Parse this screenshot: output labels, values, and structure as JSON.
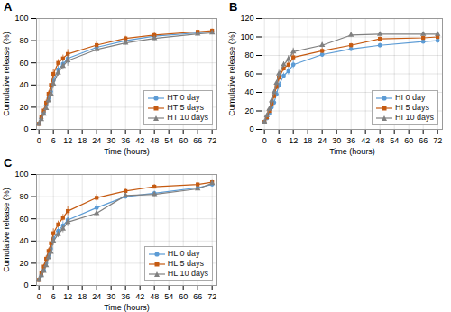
{
  "chart_data": [
    {
      "type": "line",
      "title": "A",
      "xlabel": "Time (hours)",
      "ylabel": "Cumulative release (%)",
      "x": [
        0,
        1,
        2,
        3,
        4,
        5,
        6,
        8,
        10,
        12,
        24,
        36,
        48,
        66,
        72
      ],
      "series": [
        {
          "name": "HT 0 day",
          "color": "#5b9bd5",
          "marker": "circle",
          "values": [
            5,
            10,
            15,
            22,
            28,
            34,
            44,
            54,
            59,
            64,
            74,
            80,
            84,
            87,
            88
          ],
          "errors": [
            0.5,
            1.5,
            2,
            2,
            2.5,
            3,
            4,
            3,
            3.5,
            5,
            3,
            2,
            2,
            1.5,
            1.5
          ]
        },
        {
          "name": "HT 5 days",
          "color": "#c55a11",
          "marker": "square",
          "values": [
            5,
            11,
            17,
            24,
            32,
            40,
            50,
            60,
            64,
            68,
            76,
            82,
            85,
            88,
            89
          ],
          "errors": [
            0.5,
            1.5,
            2,
            2.5,
            2.5,
            3,
            4,
            3,
            3,
            4,
            3,
            2,
            2,
            1.5,
            1.5
          ]
        },
        {
          "name": "HT 10 days",
          "color": "#808080",
          "marker": "triangle",
          "values": [
            5,
            9,
            14,
            19,
            26,
            32,
            41,
            51,
            57,
            62,
            72,
            78,
            82,
            86,
            87
          ],
          "errors": [
            0.5,
            1.5,
            2,
            2,
            2.5,
            3,
            4,
            3,
            3.5,
            5,
            3,
            2,
            2,
            1.5,
            1.5
          ]
        }
      ],
      "xlim": [
        -1,
        74
      ],
      "xticks": [
        0,
        6,
        12,
        18,
        24,
        30,
        36,
        42,
        48,
        54,
        60,
        66,
        72
      ],
      "ylim": [
        0,
        100
      ],
      "yticks": [
        0,
        20,
        40,
        60,
        80,
        100
      ],
      "grid": true,
      "legend": "lower right"
    },
    {
      "type": "line",
      "title": "B",
      "xlabel": "Time (hours)",
      "ylabel": "Cumulative release (%)",
      "x": [
        0,
        1,
        2,
        3,
        4,
        5,
        6,
        8,
        10,
        12,
        24,
        36,
        48,
        66,
        72
      ],
      "series": [
        {
          "name": "HI 0 day",
          "color": "#5b9bd5",
          "marker": "circle",
          "values": [
            8,
            12,
            17,
            24,
            29,
            38,
            48,
            58,
            63,
            70,
            81,
            87,
            91,
            95,
            96
          ],
          "errors": [
            1,
            2,
            2,
            3,
            3,
            3,
            4,
            3,
            4,
            4,
            3,
            2,
            2,
            2,
            2
          ]
        },
        {
          "name": "HI 5 days",
          "color": "#c55a11",
          "marker": "square",
          "values": [
            8,
            13,
            20,
            28,
            36,
            46,
            56,
            66,
            70,
            78,
            85,
            91,
            98,
            99,
            100
          ],
          "errors": [
            1,
            2,
            2,
            3,
            3,
            3,
            4,
            3,
            3,
            4,
            3,
            2,
            2,
            2,
            2
          ]
        },
        {
          "name": "HI 10 days",
          "color": "#808080",
          "marker": "triangle",
          "values": [
            8,
            15,
            22,
            31,
            40,
            50,
            60,
            70,
            76,
            84,
            91,
            102,
            103,
            103,
            103
          ],
          "errors": [
            1,
            2,
            2,
            3,
            3,
            3,
            4,
            3,
            4,
            4,
            3,
            2,
            2,
            2,
            2
          ]
        }
      ],
      "xlim": [
        -1,
        74
      ],
      "xticks": [
        0,
        6,
        12,
        18,
        24,
        30,
        36,
        42,
        48,
        54,
        60,
        66,
        72
      ],
      "ylim": [
        0,
        120
      ],
      "yticks": [
        0,
        20,
        40,
        60,
        80,
        100,
        120
      ],
      "grid": true,
      "legend": "lower right"
    },
    {
      "type": "line",
      "title": "C",
      "xlabel": "Time (hours)",
      "ylabel": "Cumulative release (%)",
      "x": [
        0,
        1,
        2,
        3,
        4,
        5,
        6,
        8,
        10,
        12,
        24,
        36,
        48,
        66,
        72
      ],
      "series": [
        {
          "name": "HL 0 day",
          "color": "#5b9bd5",
          "marker": "circle",
          "values": [
            5,
            9,
            14,
            20,
            27,
            33,
            42,
            49,
            54,
            59,
            70,
            80,
            83,
            88,
            91
          ],
          "errors": [
            0.5,
            1.5,
            2,
            2,
            2.5,
            3,
            4,
            3,
            3.5,
            4,
            3,
            2,
            2,
            1.5,
            1.5
          ]
        },
        {
          "name": "HL 5 days",
          "color": "#c55a11",
          "marker": "square",
          "values": [
            5,
            11,
            17,
            24,
            31,
            38,
            47,
            55,
            61,
            67,
            79,
            85,
            89,
            91,
            93
          ],
          "errors": [
            0.5,
            1.5,
            2,
            2.5,
            2.5,
            3,
            4,
            3,
            3,
            4,
            3,
            2,
            2,
            1.5,
            1.5
          ]
        },
        {
          "name": "HL 10 days",
          "color": "#808080",
          "marker": "triangle",
          "values": [
            5,
            9,
            13,
            18,
            25,
            30,
            40,
            46,
            51,
            57,
            65,
            81,
            82,
            87,
            92
          ],
          "errors": [
            0.5,
            1.5,
            2,
            2,
            2.5,
            3,
            4,
            3,
            3.5,
            4,
            3,
            2,
            2,
            1.5,
            1.5
          ]
        }
      ],
      "xlim": [
        -1,
        74
      ],
      "xticks": [
        0,
        6,
        12,
        18,
        24,
        30,
        36,
        42,
        48,
        54,
        60,
        66,
        72
      ],
      "ylim": [
        0,
        100
      ],
      "yticks": [
        0,
        20,
        40,
        60,
        80,
        100
      ],
      "grid": true,
      "legend": "lower right"
    }
  ]
}
